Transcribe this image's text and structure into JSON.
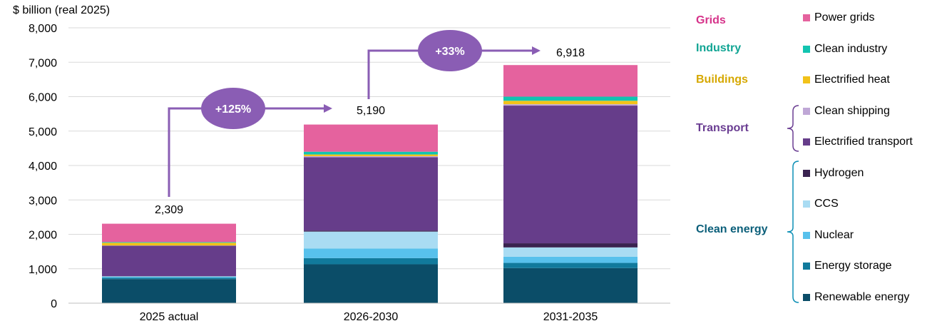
{
  "chart_data": {
    "type": "bar",
    "stacked": true,
    "unit_label": "$ billion (real 2025)",
    "categories": [
      "2025 actual",
      "2026-2030",
      "2031-2035"
    ],
    "ylim": [
      0,
      8000
    ],
    "yticks": [
      "0",
      "1,000",
      "2,000",
      "3,000",
      "4,000",
      "5,000",
      "6,000",
      "7,000",
      "8,000"
    ],
    "totals": [
      "2,309",
      "5,190",
      "6,918"
    ],
    "growth": [
      "+125%",
      "+33%"
    ],
    "series": [
      {
        "name": "Renewable energy",
        "color": "#0b4d68",
        "values": [
          700,
          1130,
          1020
        ]
      },
      {
        "name": "Energy storage",
        "color": "#117a9c",
        "values": [
          40,
          180,
          150
        ]
      },
      {
        "name": "Nuclear",
        "color": "#58c1ec",
        "values": [
          30,
          280,
          180
        ]
      },
      {
        "name": "CCS",
        "color": "#a9dcf3",
        "values": [
          10,
          490,
          270
        ]
      },
      {
        "name": "Hydrogen",
        "color": "#3a2350",
        "values": [
          5,
          30,
          120
        ]
      },
      {
        "name": "Electrified transport",
        "color": "#663d8a",
        "values": [
          885,
          2130,
          4000
        ]
      },
      {
        "name": "Clean shipping",
        "color": "#bfa7d6",
        "values": [
          5,
          30,
          40
        ]
      },
      {
        "name": "Electrified heat",
        "color": "#f2c21a",
        "values": [
          80,
          50,
          100
        ]
      },
      {
        "name": "Clean industry",
        "color": "#12c4b0",
        "values": [
          20,
          80,
          120
        ]
      },
      {
        "name": "Power grids",
        "color": "#e5629e",
        "values": [
          534,
          790,
          918
        ]
      }
    ],
    "legend_groups": [
      {
        "name": "Grids",
        "color": "#d6338a",
        "items": [
          "Power grids"
        ]
      },
      {
        "name": "Industry",
        "color": "#12a594",
        "items": [
          "Clean industry"
        ]
      },
      {
        "name": "Buildings",
        "color": "#d6a800",
        "items": [
          "Electrified heat"
        ]
      },
      {
        "name": "Transport",
        "color": "#6a3d92",
        "items": [
          "Clean shipping",
          "Electrified transport"
        ]
      },
      {
        "name": "Clean energy",
        "color": "#0b5f7a",
        "items": [
          "Hydrogen",
          "CCS",
          "Nuclear",
          "Energy storage",
          "Renewable energy"
        ]
      }
    ]
  }
}
